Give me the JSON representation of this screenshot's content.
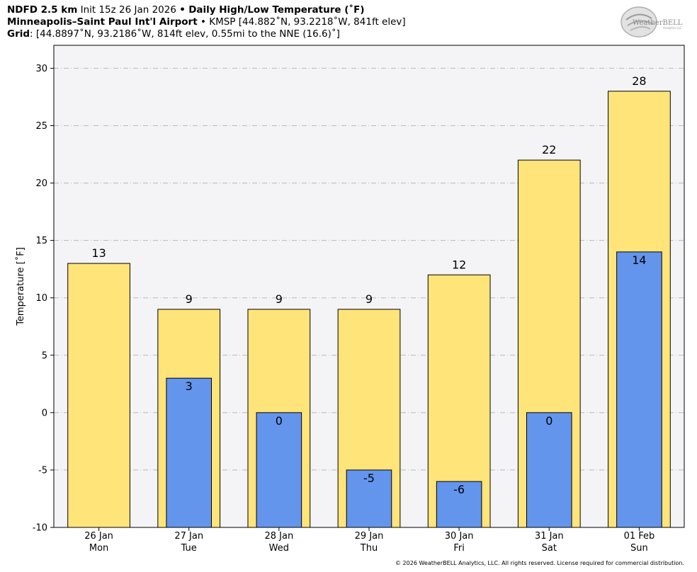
{
  "header": {
    "model": "NDFD 2.5 km",
    "init": "Init 15z 26 Jan 2026",
    "bullet": "•",
    "product": "Daily High/Low Temperature (˚F)",
    "station_name": "Minneapolis–Saint Paul Int'l Airport",
    "station_info": "KMSP [44.882˚N, 93.2218˚W, 841ft elev]",
    "grid_label": "Grid",
    "grid_info": ": [44.8897˚N, 93.2186˚W, 814ft elev, 0.55mi to the NNE (16.6)˚]"
  },
  "logo": {
    "text": "WeatherBELL",
    "subtext": "Analytics LLC"
  },
  "copyright": "© 2026 WeatherBELL Analytics, LLC. All rights reserved. License required for commercial distribution.",
  "colors": {
    "high": "#ffe47a",
    "low": "#6495ed",
    "plot_bg": "#f4f3f5",
    "grid": "#b9b9b9"
  },
  "chart_data": {
    "type": "bar",
    "ylabel": "Temperature [˚F]",
    "ylim": [
      -10,
      32
    ],
    "yticks": [
      30,
      25,
      20,
      15,
      10,
      5,
      0,
      -5,
      -10
    ],
    "grid": true,
    "categories": [
      {
        "date": "26 Jan",
        "day": "Mon"
      },
      {
        "date": "27 Jan",
        "day": "Tue"
      },
      {
        "date": "28 Jan",
        "day": "Wed"
      },
      {
        "date": "29 Jan",
        "day": "Thu"
      },
      {
        "date": "30 Jan",
        "day": "Fri"
      },
      {
        "date": "31 Jan",
        "day": "Sat"
      },
      {
        "date": "01 Feb",
        "day": "Sun"
      }
    ],
    "series": [
      {
        "key": "high",
        "values": [
          13,
          9,
          9,
          9,
          12,
          22,
          28
        ]
      },
      {
        "key": "low",
        "values": [
          null,
          3,
          0,
          -5,
          -6,
          0,
          14
        ]
      }
    ]
  }
}
